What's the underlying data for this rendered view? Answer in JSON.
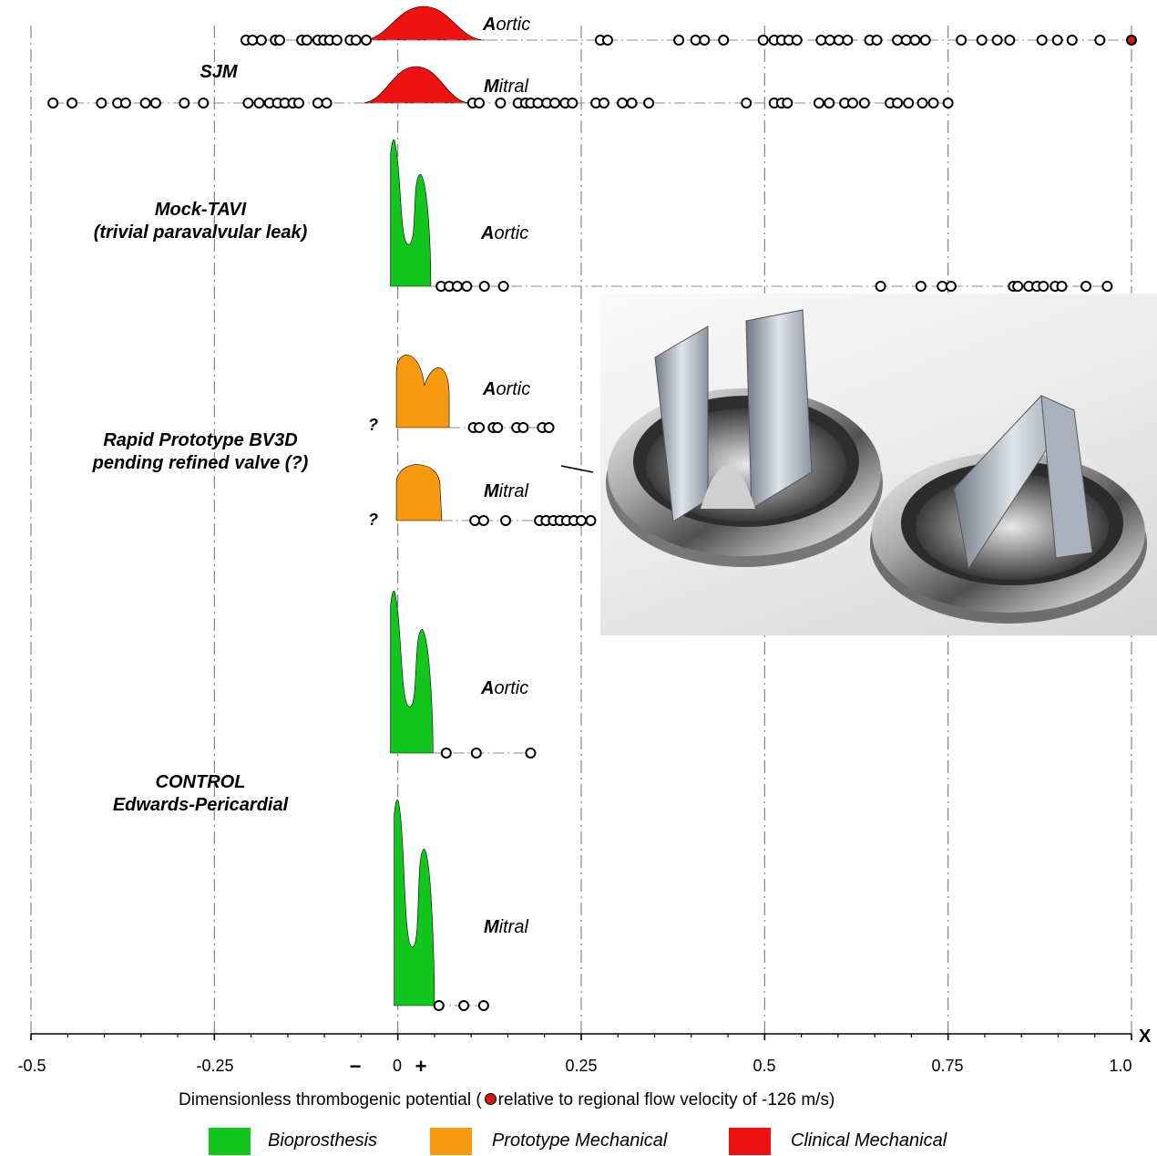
{
  "chart_data": {
    "type": "scatter",
    "xlim": [
      -0.5,
      1.0
    ],
    "x_ticks": [
      "-0.5",
      "-0.25",
      "0",
      "0.25",
      "0.5",
      "0.75",
      "1.0"
    ],
    "x_minus_sign": "−",
    "x_plus_sign": "+",
    "x_axis_letter": "X",
    "xlabel_before": "Dimensionless thrombogenic potential (",
    "xlabel_after": "relative to regional flow velocity of -126 m/s)",
    "grid": "vertical dash-dot at major ticks",
    "groups": [
      {
        "id": "sjm",
        "label": "SJM"
      },
      {
        "id": "mock",
        "label_lines": [
          "Mock-TAVI",
          "(trivial paravalvular leak)"
        ]
      },
      {
        "id": "rapid",
        "label_lines": [
          "Rapid Prototype BV3D",
          "pending refined valve (?)"
        ]
      },
      {
        "id": "control",
        "label_lines": [
          "CONTROL",
          "Edwards-Pericardial"
        ]
      }
    ],
    "series": [
      {
        "group": "sjm",
        "valve_initial": "A",
        "valve_rest": "ortic",
        "category": "Clinical Mechanical",
        "points": [
          -0.207,
          -0.198,
          -0.186,
          -0.167,
          -0.161,
          -0.131,
          -0.124,
          -0.109,
          -0.101,
          -0.093,
          -0.083,
          -0.065,
          -0.057,
          -0.043,
          0.276,
          0.286,
          0.383,
          0.406,
          0.418,
          0.444,
          0.498,
          0.513,
          0.523,
          0.533,
          0.544,
          0.577,
          0.589,
          0.601,
          0.613,
          0.643,
          0.653,
          0.681,
          0.693,
          0.705,
          0.719,
          0.768,
          0.796,
          0.817,
          0.834,
          0.878,
          0.899,
          0.919,
          0.957,
          1.0
        ],
        "highlighted_point": 1.0
      },
      {
        "group": "sjm",
        "valve_initial": "M",
        "valve_rest": "itral",
        "category": "Clinical Mechanical",
        "points": [
          -0.47,
          -0.444,
          -0.404,
          -0.382,
          -0.371,
          -0.344,
          -0.33,
          -0.291,
          -0.265,
          -0.204,
          -0.189,
          -0.175,
          -0.164,
          -0.154,
          -0.143,
          -0.135,
          -0.109,
          -0.097,
          0.102,
          0.111,
          0.14,
          0.164,
          0.174,
          0.181,
          0.191,
          0.203,
          0.214,
          0.228,
          0.238,
          0.27,
          0.281,
          0.306,
          0.319,
          0.342,
          0.475,
          0.513,
          0.523,
          0.531,
          0.574,
          0.588,
          0.609,
          0.62,
          0.636,
          0.671,
          0.681,
          0.696,
          0.715,
          0.73,
          0.75
        ],
        "shape": "single hump"
      },
      {
        "group": "mock",
        "valve_initial": "A",
        "valve_rest": "ortic",
        "category": "Bioprosthesis",
        "points": [
          0.059,
          0.07,
          0.081,
          0.094,
          0.118,
          0.144,
          0.658,
          0.713,
          0.742,
          0.754,
          0.839,
          0.845,
          0.86,
          0.871,
          0.88,
          0.896,
          0.905,
          0.938,
          0.967
        ],
        "shape": "double peak"
      },
      {
        "group": "rapid",
        "valve_initial": "A",
        "valve_rest": "ortic",
        "category": "Prototype Mechanical",
        "points": [
          0.103,
          0.111,
          0.13,
          0.136,
          0.162,
          0.171,
          0.197,
          0.206
        ],
        "shape": "double hump",
        "unknown_left_tail": "?"
      },
      {
        "group": "rapid",
        "valve_initial": "M",
        "valve_rest": "itral",
        "category": "Prototype Mechanical",
        "points": [
          0.105,
          0.117,
          0.147,
          0.193,
          0.202,
          0.212,
          0.221,
          0.23,
          0.24,
          0.25,
          0.263
        ],
        "shape": "single hump",
        "unknown_left_tail": "?"
      },
      {
        "group": "control",
        "valve_initial": "A",
        "valve_rest": "ortic",
        "category": "Bioprosthesis",
        "points": [
          0.066,
          0.107,
          0.181
        ],
        "shape": "double peak"
      },
      {
        "group": "control",
        "valve_initial": "M",
        "valve_rest": "itral",
        "category": "Bioprosthesis",
        "points": [
          0.056,
          0.09,
          0.117
        ],
        "shape": "double peak"
      }
    ],
    "legend_placement": "bottom",
    "legend": [
      {
        "name": "Bioprosthesis",
        "color": "#12c61e"
      },
      {
        "name": "Prototype Mechanical",
        "color": "#f79a12"
      },
      {
        "name": "Clinical Mechanical",
        "color": "#ee1111"
      }
    ],
    "highlight_color": "#cc1a14",
    "inset_image": "valve-photo"
  }
}
